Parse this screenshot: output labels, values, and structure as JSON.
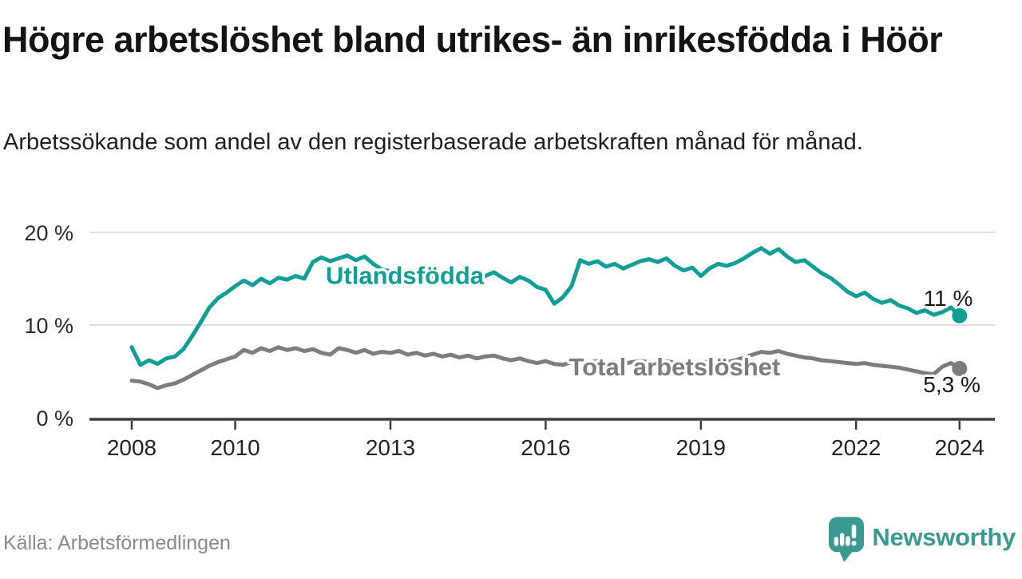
{
  "header": {
    "title": "Högre arbetslöshet bland utrikes- än inrikesfödda i Höör",
    "subtitle": "Arbetssökande som andel av den registerbaserade arbetskraften månad för månad."
  },
  "chart_data": {
    "type": "line",
    "title": "Högre arbetslöshet bland utrikes- än inrikesfödda i Höör",
    "subtitle": "Arbetssökande som andel av den registerbaserade arbetskraften månad för månad.",
    "x_start": 2008,
    "x_step_years": 0.1666667,
    "x_ticks": [
      2008,
      2010,
      2013,
      2016,
      2019,
      2022,
      2024
    ],
    "y_ticks": [
      {
        "value": 0,
        "label": "0 %"
      },
      {
        "value": 10,
        "label": "10 %"
      },
      {
        "value": 20,
        "label": "20 %"
      }
    ],
    "ylim": [
      0,
      21.5
    ],
    "grid": "horizontal-only",
    "legend_position": "inline-labels",
    "series": [
      {
        "name": "Utlandsfödda",
        "color": "#109e97",
        "end_label": "11 %",
        "end_value": 11.0,
        "label_anchor": {
          "year": 2011.75,
          "value": 14.45,
          "align": "start"
        },
        "end_label_anchor": {
          "year": 2023.78,
          "value": 12.05,
          "align": "middle"
        },
        "values": [
          7.6,
          5.7,
          6.2,
          5.8,
          6.4,
          6.6,
          7.4,
          8.8,
          10.3,
          11.9,
          12.9,
          13.5,
          14.2,
          14.8,
          14.3,
          15.0,
          14.5,
          15.1,
          14.9,
          15.3,
          15.0,
          16.8,
          17.3,
          16.9,
          17.2,
          17.5,
          17.0,
          17.4,
          16.6,
          16.0,
          15.8,
          15.3,
          15.7,
          15.2,
          15.5,
          15.0,
          15.3,
          14.8,
          14.4,
          14.9,
          14.4,
          15.3,
          15.7,
          15.1,
          14.6,
          15.2,
          14.8,
          14.1,
          13.8,
          12.3,
          13.0,
          14.2,
          17.0,
          16.6,
          16.9,
          16.3,
          16.6,
          16.1,
          16.5,
          16.9,
          17.1,
          16.8,
          17.2,
          16.4,
          15.9,
          16.2,
          15.3,
          16.1,
          16.6,
          16.4,
          16.7,
          17.2,
          17.8,
          18.3,
          17.7,
          18.2,
          17.4,
          16.8,
          17.0,
          16.3,
          15.6,
          15.1,
          14.4,
          13.6,
          13.1,
          13.5,
          12.8,
          12.4,
          12.7,
          12.1,
          11.8,
          11.3,
          11.6,
          11.1,
          11.4,
          11.9,
          11.0
        ]
      },
      {
        "name": "Total arbetslöshet",
        "color": "#7d7d7d",
        "end_label": "5,3 %",
        "end_value": 5.3,
        "label_anchor": {
          "year": 2016.45,
          "value": 4.55,
          "align": "start"
        },
        "end_label_anchor": {
          "year": 2023.85,
          "value": 2.75,
          "align": "middle"
        },
        "values": [
          4.0,
          3.9,
          3.6,
          3.2,
          3.5,
          3.7,
          4.1,
          4.6,
          5.1,
          5.6,
          6.0,
          6.3,
          6.6,
          7.3,
          7.0,
          7.5,
          7.2,
          7.6,
          7.3,
          7.5,
          7.2,
          7.4,
          7.0,
          6.8,
          7.5,
          7.3,
          7.0,
          7.3,
          6.9,
          7.1,
          7.0,
          7.2,
          6.8,
          7.0,
          6.7,
          6.9,
          6.6,
          6.8,
          6.5,
          6.7,
          6.4,
          6.6,
          6.7,
          6.4,
          6.2,
          6.4,
          6.1,
          5.9,
          6.1,
          5.8,
          5.7,
          6.0,
          6.1,
          6.0,
          6.1,
          5.9,
          6.0,
          5.8,
          6.0,
          6.1,
          6.0,
          5.9,
          6.1,
          5.9,
          5.8,
          6.0,
          5.9,
          6.1,
          6.2,
          6.0,
          6.2,
          6.5,
          6.8,
          7.1,
          7.0,
          7.2,
          6.9,
          6.7,
          6.5,
          6.4,
          6.2,
          6.1,
          6.0,
          5.9,
          5.8,
          5.9,
          5.7,
          5.6,
          5.5,
          5.4,
          5.2,
          5.0,
          4.8,
          4.7,
          5.5,
          5.9,
          5.3
        ]
      }
    ]
  },
  "footer": {
    "source": "Källa: Arbetsförmedlingen",
    "brand": "Newsworthy"
  },
  "colors": {
    "accent_teal": "#109e97",
    "logo_teal": "#3a9a93",
    "line_gray": "#7d7d7d",
    "grid": "#dedede",
    "axis": "#3c3c3c",
    "text_dark": "#141414",
    "source_gray": "#8a8a8a"
  },
  "icons": {
    "logo_icon": "speech-bubble-bar-chart-exclamation"
  }
}
